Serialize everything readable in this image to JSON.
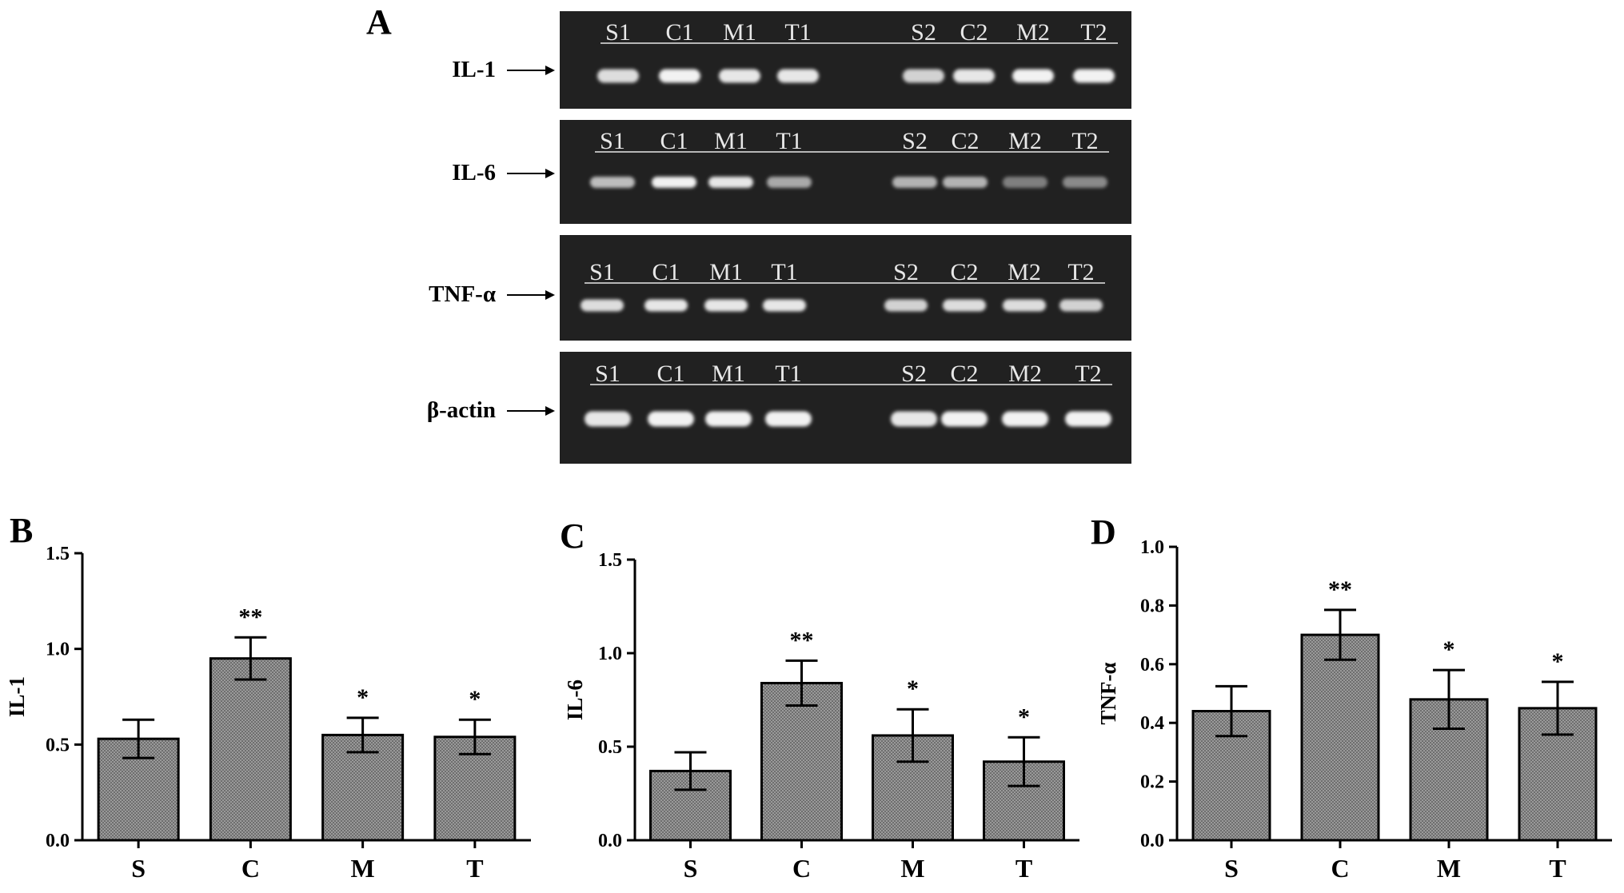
{
  "panel_a": {
    "letter": "A",
    "gels": [
      {
        "label": "IL-1",
        "top_lanes": [
          "S1",
          "C1",
          "M1",
          "T1"
        ],
        "bottom_lanes": [
          "S2",
          "C2",
          "M2",
          "T2"
        ]
      },
      {
        "label": "IL-6",
        "top_lanes": [
          "S1",
          "C1",
          "M1",
          "T1"
        ],
        "bottom_lanes": [
          "S2",
          "C2",
          "M2",
          "T2"
        ]
      },
      {
        "label": "TNF-α",
        "top_lanes": [
          "S1",
          "C1",
          "M1",
          "T1"
        ],
        "bottom_lanes": [
          "S2",
          "C2",
          "M2",
          "T2"
        ]
      },
      {
        "label": "β-actin",
        "top_lanes": [
          "S1",
          "C1",
          "M1",
          "T1"
        ],
        "bottom_lanes": [
          "S2",
          "C2",
          "M2",
          "T2"
        ]
      }
    ]
  },
  "colors": {
    "bar_fill": "#8c8c8c",
    "gel_bg": "#1c1c1c",
    "band": "#f2f2f2"
  },
  "chart_data": [
    {
      "letter": "B",
      "type": "bar",
      "categories": [
        "S",
        "C",
        "M",
        "T"
      ],
      "values": [
        0.53,
        0.95,
        0.55,
        0.54
      ],
      "errors": [
        0.1,
        0.11,
        0.09,
        0.09
      ],
      "significance": [
        "",
        "**",
        "*",
        "*"
      ],
      "ylabel": "IL-1",
      "ylim": [
        0,
        1.5
      ],
      "yticks": [
        "0.0",
        "0.5",
        "1.0",
        "1.5"
      ],
      "ytick_values": [
        0,
        0.5,
        1.0,
        1.5
      ]
    },
    {
      "letter": "C",
      "type": "bar",
      "categories": [
        "S",
        "C",
        "M",
        "T"
      ],
      "values": [
        0.37,
        0.84,
        0.56,
        0.42
      ],
      "errors": [
        0.1,
        0.12,
        0.14,
        0.13
      ],
      "significance": [
        "",
        "**",
        "*",
        "*"
      ],
      "ylabel": "IL-6",
      "ylim": [
        0,
        1.5
      ],
      "yticks": [
        "0.0",
        "0.5",
        "1.0",
        "1.5"
      ],
      "ytick_values": [
        0,
        0.5,
        1.0,
        1.5
      ]
    },
    {
      "letter": "D",
      "type": "bar",
      "categories": [
        "S",
        "C",
        "M",
        "T"
      ],
      "values": [
        0.44,
        0.7,
        0.48,
        0.45
      ],
      "errors": [
        0.085,
        0.085,
        0.1,
        0.09
      ],
      "significance": [
        "",
        "**",
        "*",
        "*"
      ],
      "ylabel": "TNF-α",
      "ylim": [
        0,
        1.0
      ],
      "yticks": [
        "0.0",
        "0.2",
        "0.4",
        "0.6",
        "0.8",
        "1.0"
      ],
      "ytick_values": [
        0,
        0.2,
        0.4,
        0.6,
        0.8,
        1.0
      ]
    }
  ]
}
